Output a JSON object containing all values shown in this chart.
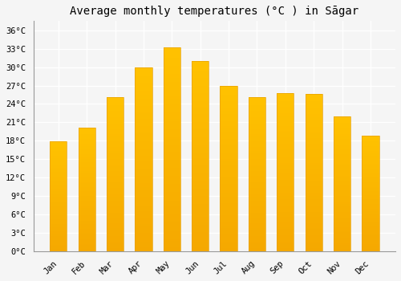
{
  "title": "Average monthly temperatures (°C ) in Sāgar",
  "months": [
    "Jan",
    "Feb",
    "Mar",
    "Apr",
    "May",
    "Jun",
    "Jul",
    "Aug",
    "Sep",
    "Oct",
    "Nov",
    "Dec"
  ],
  "temperatures": [
    17.9,
    20.1,
    25.1,
    30.0,
    33.2,
    31.0,
    26.9,
    25.1,
    25.8,
    25.7,
    22.0,
    18.8
  ],
  "bar_color_top": "#FFC200",
  "bar_color_bottom": "#F5A800",
  "background_color": "#F5F5F5",
  "grid_color": "#FFFFFF",
  "yticks": [
    0,
    3,
    6,
    9,
    12,
    15,
    18,
    21,
    24,
    27,
    30,
    33,
    36
  ],
  "ylim": [
    0,
    37.5
  ],
  "title_fontsize": 10,
  "tick_fontsize": 7.5,
  "title_font": "monospace",
  "bar_width": 0.6
}
